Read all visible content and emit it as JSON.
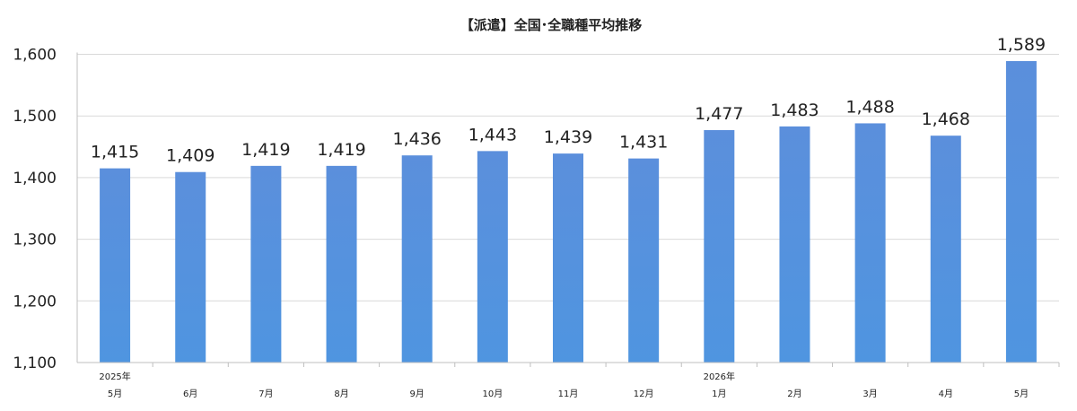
{
  "chart_data": {
    "type": "bar",
    "title": "【派遣】全国･全職種平均推移",
    "xlabel": "",
    "ylabel": "",
    "categories": [
      {
        "year": "2025年",
        "month": "5月"
      },
      {
        "year": "",
        "month": "6月"
      },
      {
        "year": "",
        "month": "7月"
      },
      {
        "year": "",
        "month": "8月"
      },
      {
        "year": "",
        "month": "9月"
      },
      {
        "year": "",
        "month": "10月"
      },
      {
        "year": "",
        "month": "11月"
      },
      {
        "year": "",
        "month": "12月"
      },
      {
        "year": "2026年",
        "month": "1月"
      },
      {
        "year": "",
        "month": "2月"
      },
      {
        "year": "",
        "month": "3月"
      },
      {
        "year": "",
        "month": "4月"
      },
      {
        "year": "",
        "month": "5月"
      }
    ],
    "values": [
      1415,
      1409,
      1419,
      1419,
      1436,
      1443,
      1439,
      1431,
      1477,
      1483,
      1488,
      1468,
      1589
    ],
    "data_labels": [
      "1,415",
      "1,409",
      "1,419",
      "1,419",
      "1,436",
      "1,443",
      "1,439",
      "1,431",
      "1,477",
      "1,483",
      "1,488",
      "1,468",
      "1,589"
    ],
    "ylim": [
      1100,
      1650
    ],
    "yticks": [
      1100,
      1200,
      1300,
      1400,
      1500,
      1600
    ],
    "ytick_labels": [
      "1,100",
      "1,200",
      "1,300",
      "1,400",
      "1,500",
      "1,600"
    ],
    "grid": true,
    "legend": "none",
    "colors": {
      "bar_top": "#5b8fdc",
      "bar_bottom": "#4f95e0",
      "grid": "#d9d9d9",
      "axis": "#bfbfbf",
      "text": "#222222"
    }
  }
}
